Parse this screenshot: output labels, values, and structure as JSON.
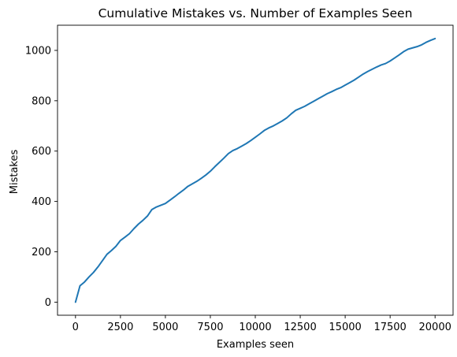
{
  "chart_data": {
    "type": "line",
    "title": "Cumulative Mistakes vs. Number of Examples Seen",
    "xlabel": "Examples seen",
    "ylabel": "Mistakes",
    "xlim": [
      -1000,
      21000
    ],
    "ylim": [
      -52,
      1100
    ],
    "grid": false,
    "legend": "none",
    "xticks": [
      0,
      2500,
      5000,
      7500,
      10000,
      12500,
      15000,
      17500,
      20000
    ],
    "yticks": [
      0,
      200,
      400,
      600,
      800,
      1000
    ],
    "series": [
      {
        "color": "#1f77b4",
        "x": [
          0,
          250,
          500,
          750,
          1000,
          1250,
          1500,
          1750,
          2000,
          2250,
          2500,
          2750,
          3000,
          3250,
          3500,
          3750,
          4000,
          4250,
          4500,
          4750,
          5000,
          5250,
          5500,
          5750,
          6000,
          6250,
          6500,
          6750,
          7000,
          7250,
          7500,
          7750,
          8000,
          8250,
          8500,
          8750,
          9000,
          9250,
          9500,
          9750,
          10000,
          10250,
          10500,
          10750,
          11000,
          11250,
          11500,
          11750,
          12000,
          12250,
          12500,
          12750,
          13000,
          13250,
          13500,
          13750,
          14000,
          14250,
          14500,
          14750,
          15000,
          15250,
          15500,
          15750,
          16000,
          16250,
          16500,
          16750,
          17000,
          17250,
          17500,
          17750,
          18000,
          18250,
          18500,
          18750,
          19000,
          19250,
          19500,
          19750,
          20000
        ],
        "y": [
          0,
          65,
          80,
          100,
          118,
          140,
          165,
          190,
          205,
          222,
          245,
          258,
          272,
          292,
          310,
          325,
          342,
          368,
          378,
          385,
          392,
          405,
          418,
          432,
          445,
          460,
          470,
          480,
          492,
          505,
          520,
          538,
          555,
          572,
          590,
          602,
          610,
          620,
          630,
          642,
          655,
          668,
          682,
          692,
          700,
          710,
          720,
          732,
          748,
          762,
          770,
          778,
          788,
          798,
          808,
          818,
          828,
          836,
          845,
          852,
          862,
          872,
          882,
          894,
          906,
          916,
          925,
          934,
          942,
          948,
          958,
          970,
          982,
          995,
          1005,
          1010,
          1015,
          1022,
          1032,
          1040,
          1047
        ]
      }
    ]
  }
}
